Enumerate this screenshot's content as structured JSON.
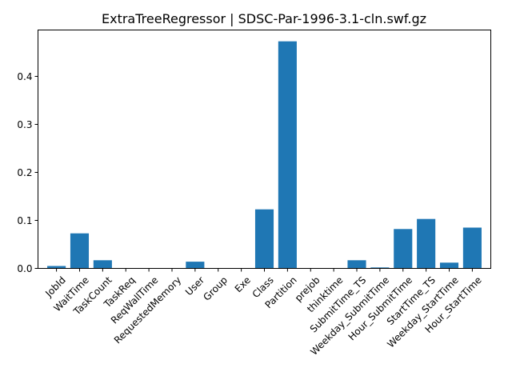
{
  "chart_data": {
    "type": "bar",
    "title": "ExtraTreeRegressor | SDSC-Par-1996-3.1-cln.swf.gz",
    "xlabel": "",
    "ylabel": "",
    "categories": [
      "JobId",
      "WaitTime",
      "TaskCount",
      "TaskReq",
      "ReqWallTime",
      "RequestedMemory",
      "User",
      "Group",
      "Exe",
      "Class",
      "Partition",
      "prejob",
      "thinktime",
      "SubmitTime_TS",
      "Weekday_SubmitTime",
      "Hour_SubmitTime",
      "StartTime_TS",
      "Weekday_StartTime",
      "Hour_StartTime"
    ],
    "values": [
      0.005,
      0.073,
      0.017,
      0.0,
      0.0,
      0.0,
      0.014,
      0.0,
      0.0,
      0.123,
      0.473,
      0.0,
      0.0,
      0.017,
      0.002,
      0.082,
      0.103,
      0.012,
      0.085
    ],
    "ylim": [
      0,
      0.4966
    ],
    "yticks": [
      "0.0",
      "0.1",
      "0.2",
      "0.3",
      "0.4"
    ],
    "ytick_values": [
      0.0,
      0.1,
      0.2,
      0.3,
      0.4
    ],
    "bar_color": "#1f77b4",
    "grid": false,
    "legend": "none",
    "xtick_rotation_deg": 45
  }
}
